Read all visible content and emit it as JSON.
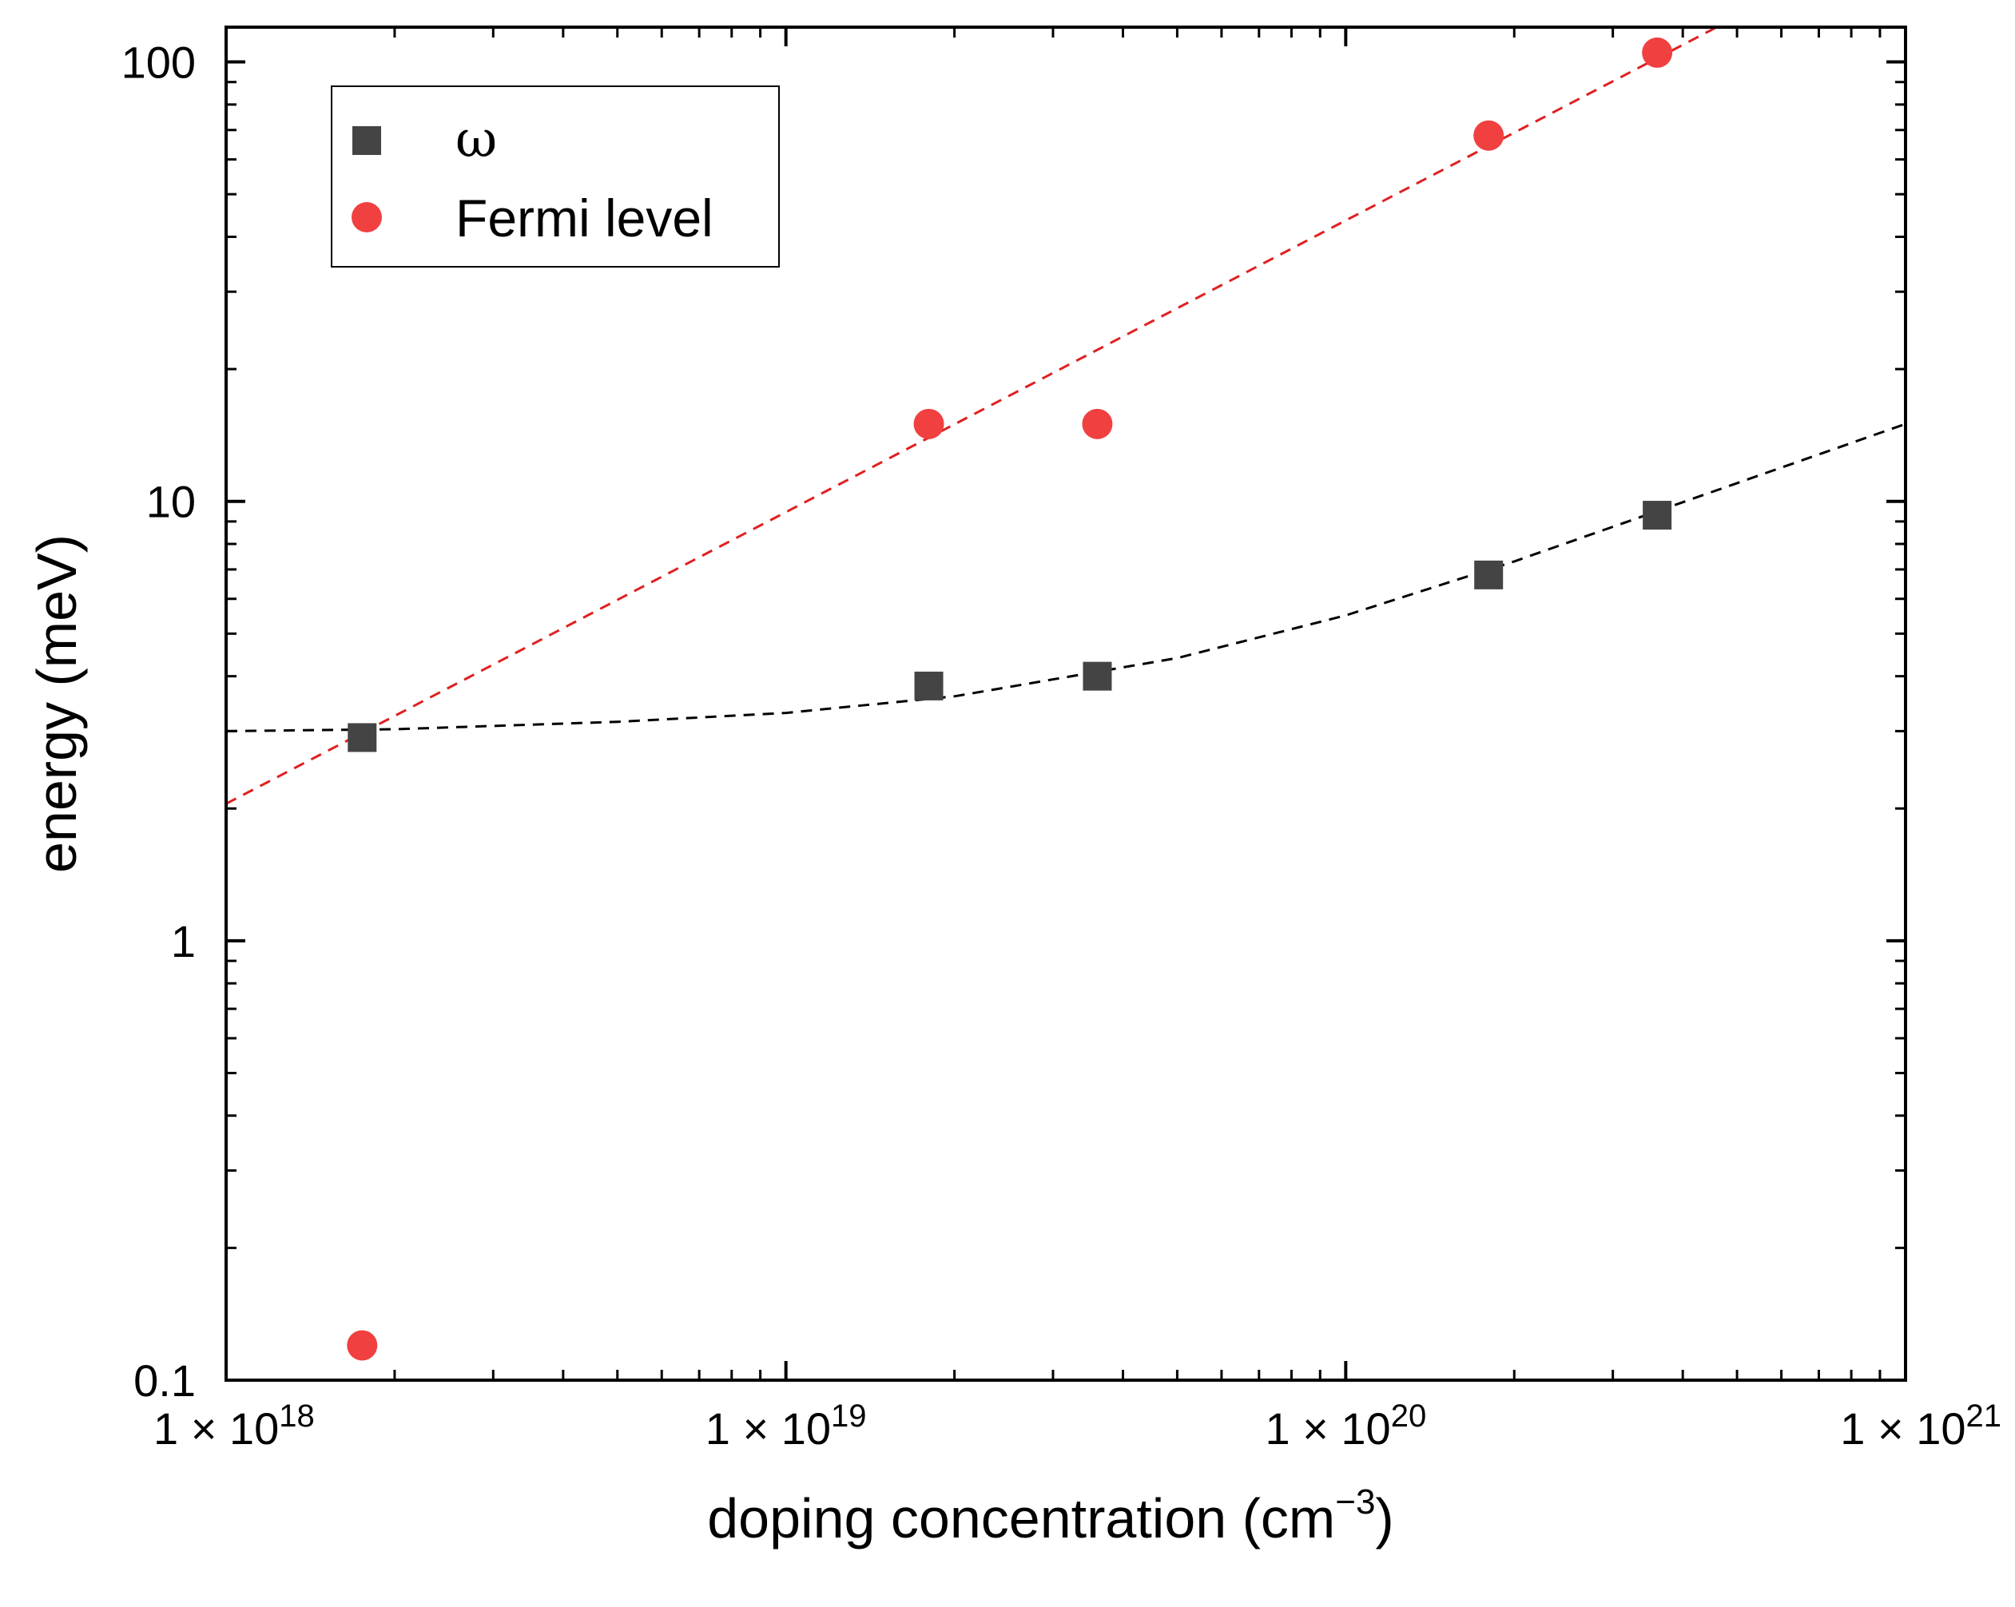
{
  "chart_data": {
    "type": "scatter",
    "title": "",
    "xlabel": "doping concentration (cm",
    "xlabel_superscript": "−3",
    "xlabel_close": ")",
    "ylabel": "energy (meV)",
    "xscale": "log",
    "yscale": "log",
    "xlim": [
      1e+18,
      1e+21
    ],
    "ylim": [
      0.1,
      120
    ],
    "x_ticks": [
      {
        "value": 1e+18,
        "mantissa": "1 × 10",
        "exponent": "18"
      },
      {
        "value": 1e+19,
        "mantissa": "1 × 10",
        "exponent": "19"
      },
      {
        "value": 1e+20,
        "mantissa": "1 × 10",
        "exponent": "20"
      },
      {
        "value": 1e+21,
        "mantissa": "1 × 10",
        "exponent": "21"
      }
    ],
    "y_ticks": [
      {
        "value": 0.1,
        "label": "0.1"
      },
      {
        "value": 1,
        "label": "1"
      },
      {
        "value": 10,
        "label": "10"
      },
      {
        "value": 100,
        "label": "100"
      }
    ],
    "legend_position": "top-left",
    "series": [
      {
        "name": "ω",
        "marker": "square",
        "color": "#444444",
        "x": [
          1.75e+18,
          1.8e+19,
          3.6e+19,
          1.8e+20,
          3.6e+20
        ],
        "y": [
          2.9,
          3.8,
          4.0,
          6.8,
          9.3
        ]
      },
      {
        "name": "Fermi level",
        "marker": "circle",
        "color": "#f04040",
        "x": [
          1.75e+18,
          1.8e+19,
          3.6e+19,
          1.8e+20,
          3.6e+20
        ],
        "y": [
          0.12,
          15,
          15,
          68,
          105
        ]
      }
    ],
    "fits": [
      {
        "name": "omega-fit",
        "color": "#000000",
        "style": "dashed",
        "x": [
          1e+18,
          2e+18,
          5e+18,
          1e+19,
          2e+19,
          5e+19,
          1e+20,
          2e+20,
          5e+20,
          1e+21
        ],
        "y": [
          3.0,
          3.03,
          3.15,
          3.3,
          3.6,
          4.4,
          5.5,
          7.3,
          11.0,
          15.0
        ]
      },
      {
        "name": "fermi-fit",
        "color": "#e02020",
        "style": "dashed",
        "x": [
          1e+18,
          4.6e+20
        ],
        "y": [
          2.05,
          120
        ]
      }
    ]
  }
}
